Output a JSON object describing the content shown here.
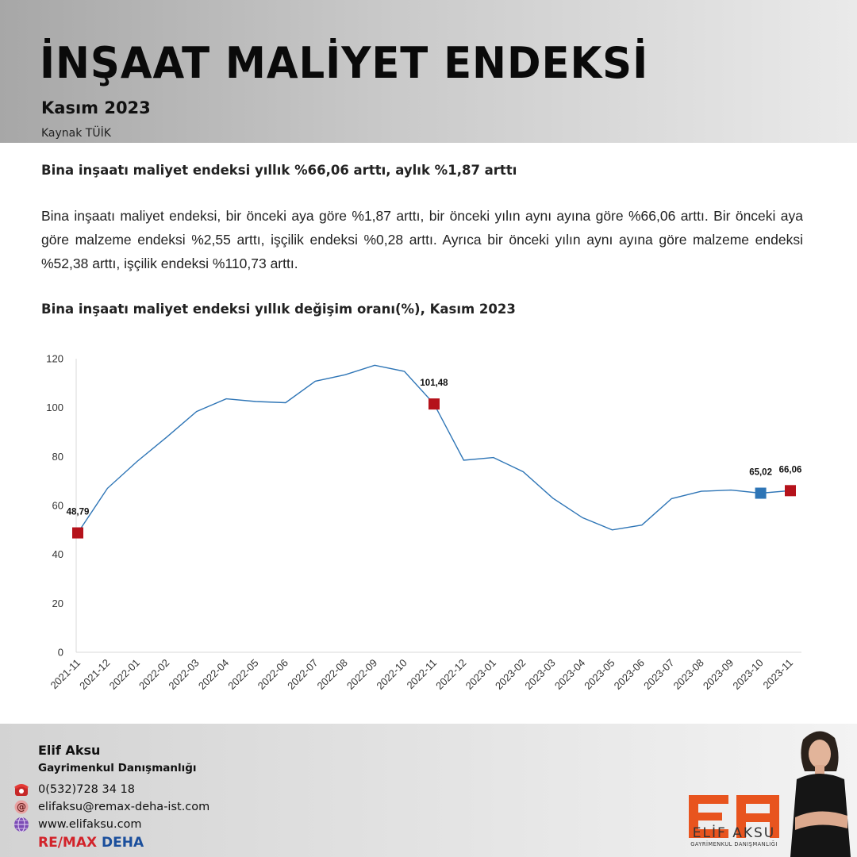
{
  "header": {
    "title": "İNŞAAT MALİYET ENDEKSİ",
    "date": "Kasım 2023",
    "source": "Kaynak TÜİK"
  },
  "article": {
    "heading": "Bina inşaatı maliyet endeksi yıllık %66,06 arttı, aylık %1,87 arttı",
    "body": "Bina inşaatı maliyet endeksi, bir önceki aya göre %1,87 arttı, bir önceki yılın aynı ayına göre %66,06 arttı. Bir önceki aya göre malzeme endeksi %2,55 arttı, işçilik endeksi %0,28 arttı. Ayrıca bir önceki yılın aynı ayına göre malzeme endeksi %52,38 arttı, işçilik endeksi %110,73 arttı."
  },
  "chart_title": "Bina inşaatı maliyet endeksi yıllık değişim oranı(%), Kasım 2023",
  "chart_data": {
    "type": "line",
    "title": "Bina inşaatı maliyet endeksi yıllık değişim oranı(%), Kasım 2023",
    "xlabel": "",
    "ylabel": "",
    "x": [
      "2021-11",
      "2021-12",
      "2022-01",
      "2022-02",
      "2022-03",
      "2022-04",
      "2022-05",
      "2022-06",
      "2022-07",
      "2022-08",
      "2022-09",
      "2022-10",
      "2022-11",
      "2022-12",
      "2023-01",
      "2023-02",
      "2023-03",
      "2023-04",
      "2023-05",
      "2023-06",
      "2023-07",
      "2023-08",
      "2023-09",
      "2023-10",
      "2023-11"
    ],
    "series": [
      {
        "name": "",
        "values": [
          48.79,
          67.0,
          78.0,
          88.0,
          98.4,
          103.6,
          102.5,
          102.0,
          110.8,
          113.4,
          117.3,
          114.8,
          101.48,
          78.5,
          79.6,
          73.8,
          63.0,
          55.0,
          50.0,
          52.0,
          62.8,
          65.8,
          66.3,
          65.02,
          66.06
        ],
        "color": "#2e75b6"
      }
    ],
    "ylim": [
      0,
      120
    ],
    "yticks": [
      0,
      20,
      40,
      60,
      80,
      100,
      120
    ],
    "grid": false,
    "highlights": [
      {
        "index": 0,
        "label": "48,79",
        "color": "#b5121b"
      },
      {
        "index": 12,
        "label": "101,48",
        "color": "#b5121b"
      },
      {
        "index": 23,
        "label": "65,02",
        "color": "#2e75b6"
      },
      {
        "index": 24,
        "label": "66,06",
        "color": "#b5121b"
      }
    ]
  },
  "contact": {
    "name": "Elif Aksu",
    "role": "Gayrimenkul Danışmanlığı",
    "phone": "0(532)728 34 18",
    "email": "elifaksu@remax-deha-ist.com",
    "website": "www.elifaksu.com",
    "icons": {
      "phone": "phone-icon",
      "email": "email-icon",
      "website": "globe-icon"
    }
  },
  "brand": {
    "remax_part": "RE/MAX",
    "remax_office": "DEHA",
    "logo_name": "ELİF AKSU",
    "logo_sub": "GAYRİMENKUL DANIŞMANLIĞI",
    "accent_color": "#e8541e"
  }
}
